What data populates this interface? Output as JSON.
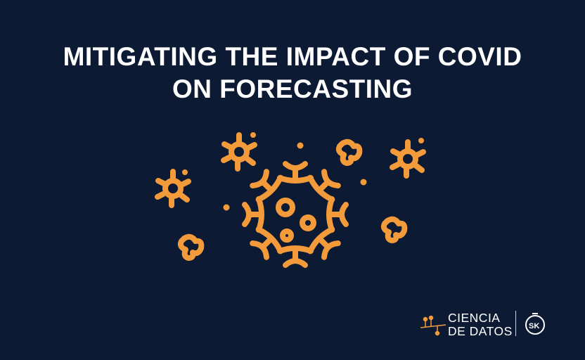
{
  "header": {
    "title_line1": "MITIGATING THE IMPACT OF COVID",
    "title_line2": "ON FORECASTING"
  },
  "illustration": {
    "icon": "coronavirus-icon",
    "color": "#f39a3a"
  },
  "footer": {
    "brand_line1": "CIENCIA",
    "brand_line2": "DE DATOS",
    "brand_icon": "data-tree-icon",
    "partner_logo": "SK",
    "partner_logo_icon": "stopwatch-icon"
  },
  "colors": {
    "background": "#0c1a33",
    "accent": "#f39a3a",
    "text": "#ffffff"
  }
}
